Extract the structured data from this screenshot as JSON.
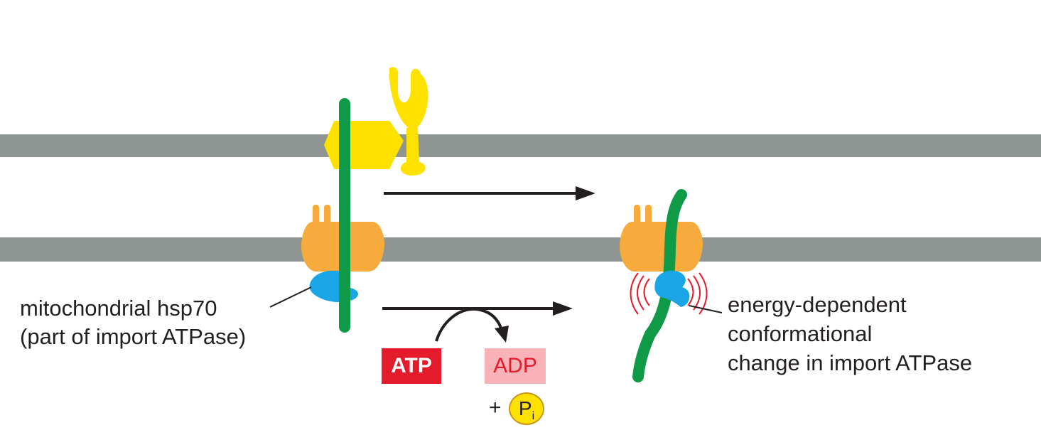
{
  "labels": {
    "hsp70_line1": "mitochondrial hsp70",
    "hsp70_line2": "(part of import ATPase)",
    "conf_line1": "energy-dependent",
    "conf_line2": "conformational",
    "conf_line3": "change in import ATPase",
    "atp": "ATP",
    "adp": "ADP",
    "plus": "+",
    "pi_main": "P",
    "pi_sub": "i"
  },
  "colors": {
    "membrane": "#8e9592",
    "polypeptide": "#0f9a48",
    "tom_receptor": "#ffe100",
    "tim_complex": "#f7ab3d",
    "hsp70": "#1aa6e6",
    "atp_bg": "#e31b2a",
    "atp_text": "#ffffff",
    "adp_bg": "#f9b3b8",
    "adp_text": "#e31b2a",
    "pi_bg": "#ffe100",
    "vibration": "#e31b2a",
    "arrow": "#231f20"
  }
}
